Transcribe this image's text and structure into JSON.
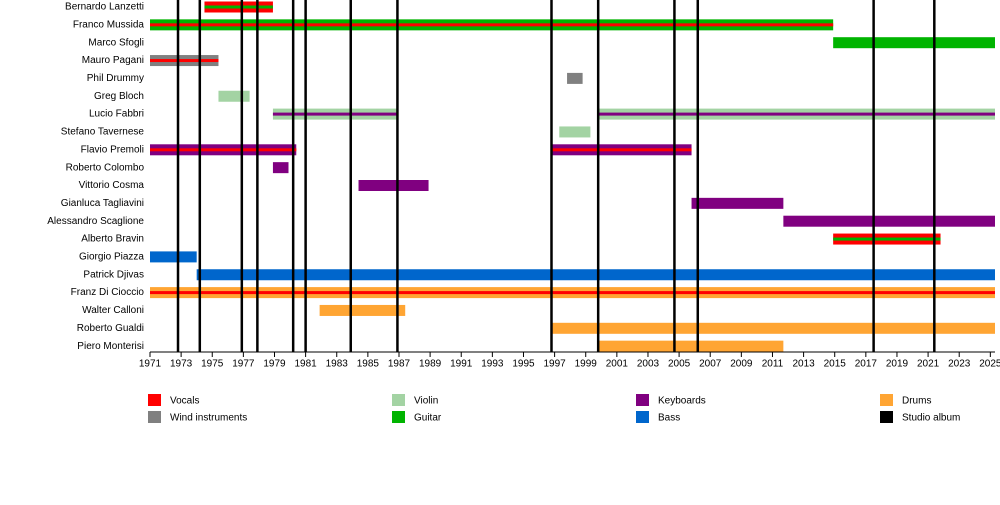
{
  "chart_data": {
    "type": "timeline",
    "xlim": [
      1971,
      2025.3
    ],
    "xticks": [
      1971,
      1973,
      1975,
      1977,
      1979,
      1981,
      1983,
      1985,
      1987,
      1989,
      1991,
      1993,
      1995,
      1997,
      1999,
      2001,
      2003,
      2005,
      2007,
      2009,
      2011,
      2013,
      2015,
      2017,
      2019,
      2021,
      2023,
      2025
    ],
    "roles": [
      {
        "name": "Vocals",
        "color": "#ff0000"
      },
      {
        "name": "Wind instruments",
        "color": "#808080"
      },
      {
        "name": "Violin",
        "color": "#a3d3a3"
      },
      {
        "name": "Guitar",
        "color": "#00b400"
      },
      {
        "name": "Keyboards",
        "color": "#800080"
      },
      {
        "name": "Bass",
        "color": "#0066cc"
      },
      {
        "name": "Drums",
        "color": "#ffa533"
      }
    ],
    "album_label": "Studio album",
    "album_color": "#000000",
    "albums": [
      1972.8,
      1974.2,
      1976.9,
      1977.9,
      1980.2,
      1981.0,
      1983.9,
      1986.9,
      1996.8,
      1999.8,
      2004.7,
      2006.2,
      2017.5,
      2021.4
    ],
    "members": [
      {
        "name": "Bernardo Lanzetti",
        "bars": [
          {
            "start": 1974.5,
            "end": 1978.9,
            "role": "Vocals",
            "stripe": "Guitar"
          }
        ]
      },
      {
        "name": "Franco Mussida",
        "bars": [
          {
            "start": 1971,
            "end": 2014.9,
            "role": "Guitar",
            "stripe": "Vocals"
          }
        ]
      },
      {
        "name": "Marco Sfogli",
        "bars": [
          {
            "start": 2014.9,
            "end": 2025.3,
            "role": "Guitar"
          }
        ]
      },
      {
        "name": "Mauro Pagani",
        "bars": [
          {
            "start": 1971,
            "end": 1975.4,
            "role": "Wind instruments",
            "stripe": "Vocals"
          }
        ]
      },
      {
        "name": "Phil Drummy",
        "bars": [
          {
            "start": 1997.8,
            "end": 1998.8,
            "role": "Wind instruments"
          }
        ]
      },
      {
        "name": "Greg Bloch",
        "bars": [
          {
            "start": 1975.4,
            "end": 1977.4,
            "role": "Violin"
          }
        ]
      },
      {
        "name": "Lucio Fabbri",
        "bars": [
          {
            "start": 1978.9,
            "end": 1986.9,
            "role": "Violin",
            "stripe": "Keyboards"
          },
          {
            "start": 1999.8,
            "end": 2025.3,
            "role": "Violin",
            "stripe": "Keyboards"
          }
        ]
      },
      {
        "name": "Stefano Tavernese",
        "bars": [
          {
            "start": 1997.3,
            "end": 1999.3,
            "role": "Violin"
          }
        ]
      },
      {
        "name": "Flavio Premoli",
        "bars": [
          {
            "start": 1971,
            "end": 1980.4,
            "role": "Keyboards",
            "stripe": "Vocals"
          },
          {
            "start": 1996.8,
            "end": 2005.8,
            "role": "Keyboards",
            "stripe": "Vocals"
          }
        ]
      },
      {
        "name": "Roberto Colombo",
        "bars": [
          {
            "start": 1978.9,
            "end": 1979.9,
            "role": "Keyboards"
          }
        ]
      },
      {
        "name": "Vittorio Cosma",
        "bars": [
          {
            "start": 1984.4,
            "end": 1988.9,
            "role": "Keyboards"
          }
        ]
      },
      {
        "name": "Gianluca Tagliavini",
        "bars": [
          {
            "start": 2005.8,
            "end": 2011.7,
            "role": "Keyboards"
          }
        ]
      },
      {
        "name": "Alessandro Scaglione",
        "bars": [
          {
            "start": 2011.7,
            "end": 2025.3,
            "role": "Keyboards"
          }
        ]
      },
      {
        "name": "Alberto Bravin",
        "bars": [
          {
            "start": 2014.9,
            "end": 2021.8,
            "role": "Vocals",
            "stripe": "Guitar"
          }
        ]
      },
      {
        "name": "Giorgio Piazza",
        "bars": [
          {
            "start": 1971,
            "end": 1974,
            "role": "Bass"
          }
        ]
      },
      {
        "name": "Patrick Djivas",
        "bars": [
          {
            "start": 1974,
            "end": 2025.3,
            "role": "Bass"
          }
        ]
      },
      {
        "name": "Franz Di Cioccio",
        "bars": [
          {
            "start": 1971,
            "end": 2025.3,
            "role": "Drums",
            "stripe": "Vocals"
          }
        ]
      },
      {
        "name": "Walter Calloni",
        "bars": [
          {
            "start": 1981.9,
            "end": 1987.4,
            "role": "Drums"
          }
        ]
      },
      {
        "name": "Roberto Gualdi",
        "bars": [
          {
            "start": 1996.8,
            "end": 2025.3,
            "role": "Drums"
          }
        ]
      },
      {
        "name": "Piero Monterisi",
        "bars": [
          {
            "start": 1999.8,
            "end": 2011.7,
            "role": "Drums"
          }
        ]
      }
    ]
  }
}
